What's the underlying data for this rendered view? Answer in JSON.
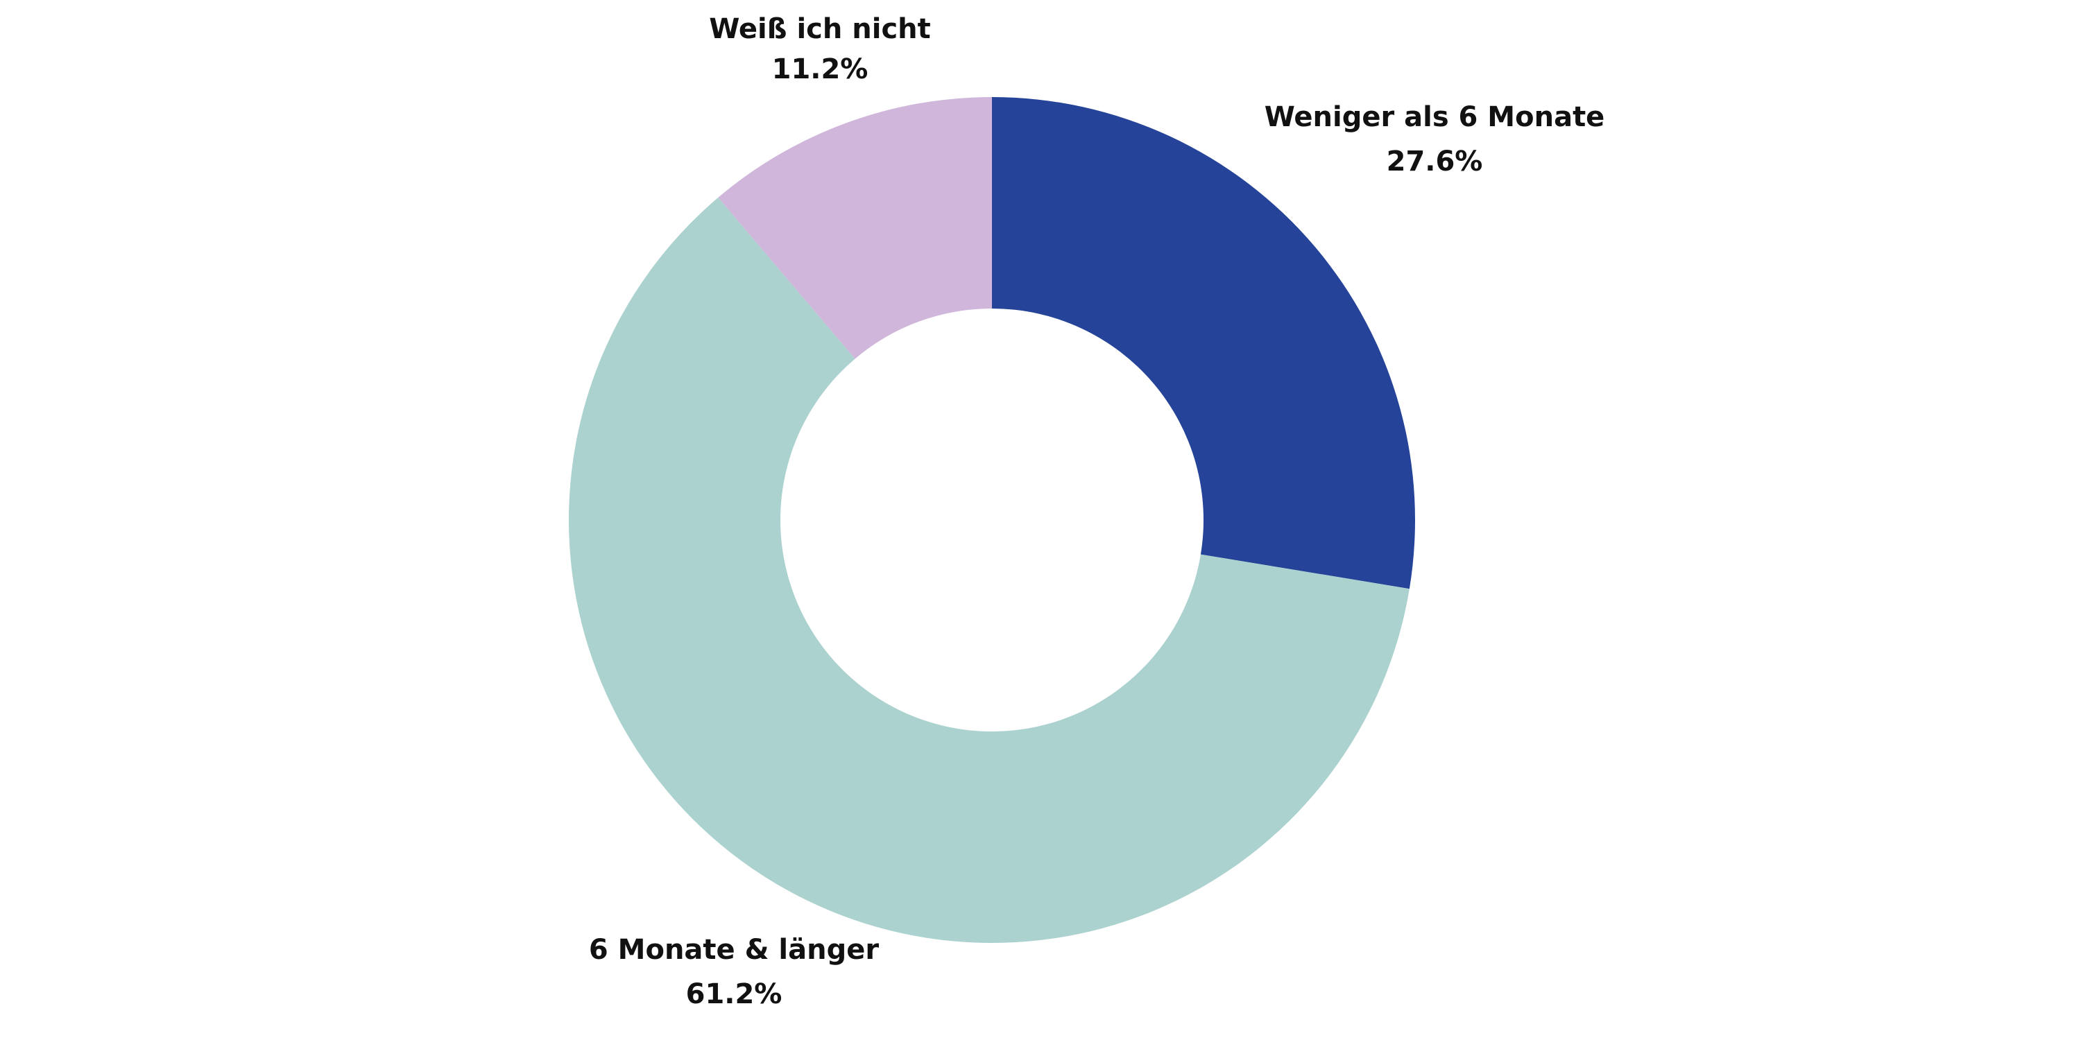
{
  "chart_data": {
    "type": "pie",
    "donut": true,
    "title": "",
    "slices": [
      {
        "label": "Weniger als 6 Monate",
        "value": 27.6,
        "value_label": "27.6%",
        "color": "#254499"
      },
      {
        "label": "6 Monate & länger",
        "value": 61.2,
        "value_label": "61.2%",
        "color": "#abd2cf"
      },
      {
        "label": "Weiß ich nicht",
        "value": 11.2,
        "value_label": "11.2%",
        "color": "#cfb6da"
      }
    ]
  }
}
